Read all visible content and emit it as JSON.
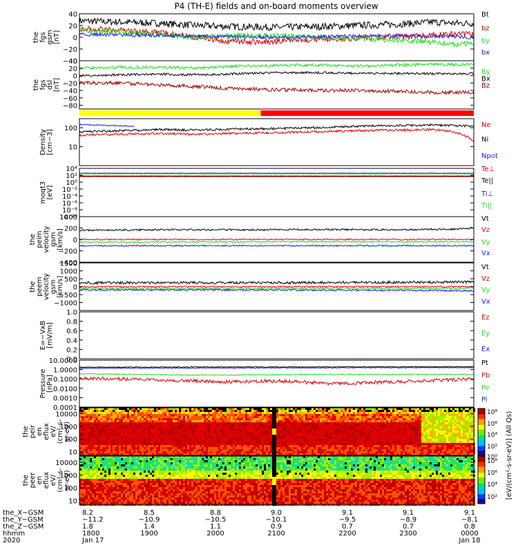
{
  "title": "P4 (TH-E) fields and on-board moments overview",
  "colors": {
    "black": "#000000",
    "red": "#e00000",
    "green": "#20e020",
    "blue": "#1a1ae6",
    "darkred": "#a00000",
    "yellow": "#ffff00",
    "barred": "#ff0000",
    "bg": "#ffffff"
  },
  "chart_data": [
    {
      "id": "fgs-gsm",
      "type": "line",
      "ylabel": [
        "the",
        "fgs",
        "gsm",
        "[nT]"
      ],
      "ylim": [
        -40,
        40
      ],
      "yticks": [
        "40",
        "20",
        "0",
        "−20",
        "−40"
      ],
      "legend": [
        {
          "label": "Bt",
          "color": "black"
        },
        {
          "label": "bz",
          "color": "red"
        },
        {
          "label": "by",
          "color": "green"
        },
        {
          "label": "bx",
          "color": "blue"
        }
      ],
      "series": [
        {
          "name": "Bt",
          "color": "black",
          "x": [
            0,
            10,
            20,
            30,
            40,
            50,
            60,
            70,
            80,
            90,
            95,
            100
          ],
          "values": [
            28,
            26,
            24,
            20,
            18,
            17,
            18,
            20,
            22,
            26,
            24,
            24
          ],
          "noise": 6
        },
        {
          "name": "bz",
          "color": "red",
          "x": [
            0,
            10,
            20,
            30,
            37,
            45,
            55,
            65,
            75,
            85,
            95,
            100
          ],
          "values": [
            15,
            12,
            8,
            0,
            -7,
            -8,
            -5,
            -3,
            0,
            2,
            5,
            5
          ],
          "noise": 5
        },
        {
          "name": "by",
          "color": "green",
          "x": [
            0,
            10,
            20,
            30,
            40,
            50,
            60,
            70,
            80,
            90,
            95,
            100
          ],
          "values": [
            12,
            9,
            5,
            0,
            2,
            2,
            0,
            -2,
            -4,
            -8,
            -12,
            -10
          ],
          "noise": 5
        },
        {
          "name": "bx",
          "color": "blue",
          "x": [
            0,
            10,
            20,
            30,
            40,
            50,
            60,
            70,
            80,
            90,
            95,
            100
          ],
          "values": [
            5,
            4,
            3,
            2,
            1,
            0,
            1,
            2,
            3,
            2,
            1,
            0
          ],
          "noise": 3
        }
      ]
    },
    {
      "id": "fgs-dsl",
      "type": "line",
      "ylabel": [
        "the",
        "fgs",
        "dsl",
        "[nT]"
      ],
      "ylim": [
        -90,
        40
      ],
      "yticks": [
        "40",
        "20",
        "0",
        "−20",
        "−40",
        "−60",
        "−80"
      ],
      "legend": [
        {
          "label": "By",
          "color": "green"
        },
        {
          "label": "Bx",
          "color": "black"
        },
        {
          "label": "Bz",
          "color": "darkred"
        }
      ],
      "series": [
        {
          "name": "By",
          "color": "green",
          "x": [
            0,
            10,
            20,
            30,
            40,
            50,
            60,
            70,
            80,
            90,
            100
          ],
          "values": [
            20,
            22,
            22,
            20,
            25,
            28,
            28,
            26,
            28,
            30,
            30
          ],
          "noise": 4
        },
        {
          "name": "Bx",
          "color": "black",
          "x": [
            0,
            10,
            20,
            30,
            40,
            50,
            60,
            70,
            80,
            90,
            100
          ],
          "values": [
            0,
            2,
            4,
            2,
            5,
            8,
            8,
            6,
            6,
            5,
            5
          ],
          "noise": 3
        },
        {
          "name": "Bz",
          "color": "darkred",
          "x": [
            0,
            10,
            20,
            30,
            40,
            50,
            60,
            70,
            80,
            90,
            100
          ],
          "values": [
            -20,
            -20,
            -25,
            -30,
            -35,
            -38,
            -40,
            -40,
            -42,
            -45,
            -45
          ],
          "noise": 5
        }
      ]
    },
    {
      "id": "mode-bar",
      "type": "bar",
      "segments": [
        {
          "from": 0,
          "to": 46,
          "color": "yellow"
        },
        {
          "from": 46,
          "to": 100,
          "color": "barred"
        }
      ]
    },
    {
      "id": "density",
      "type": "line",
      "yscale": "log",
      "ylabel": [
        "Density",
        "[cm−3]"
      ],
      "ylim": [
        1,
        300
      ],
      "yticks": [
        {
          "v": 100,
          "label": "100"
        },
        {
          "v": 10,
          "label": "10"
        }
      ],
      "legend": [
        {
          "label": "Ne",
          "color": "red"
        },
        {
          "label": "Ni",
          "color": "black"
        },
        {
          "label": "Npot",
          "color": "blue"
        }
      ],
      "series": [
        {
          "name": "Ni",
          "color": "black",
          "x": [
            0,
            10,
            20,
            30,
            40,
            50,
            60,
            70,
            80,
            90,
            95,
            100
          ],
          "values": [
            60,
            70,
            80,
            75,
            85,
            90,
            100,
            120,
            130,
            140,
            130,
            120
          ],
          "noise": 0.06
        },
        {
          "name": "Ne",
          "color": "red",
          "x": [
            0,
            10,
            20,
            30,
            40,
            50,
            60,
            70,
            80,
            90,
            95,
            100
          ],
          "values": [
            40,
            45,
            50,
            45,
            50,
            55,
            60,
            70,
            75,
            80,
            60,
            20
          ],
          "noise": 0.06
        },
        {
          "name": "Npot",
          "color": "blue",
          "x": [
            0,
            8,
            14
          ],
          "values": [
            150,
            130,
            120
          ],
          "noise": 0.03
        }
      ]
    },
    {
      "id": "moms-temp",
      "type": "line",
      "yscale": "log",
      "ylabel": [
        "moqt3",
        "[eV]"
      ],
      "ylim": [
        1e-10,
        10000.0
      ],
      "yticks": [
        {
          "v": 10000.0,
          "label": "10⁴"
        },
        {
          "v": 100,
          "label": "10²"
        },
        {
          "v": 1,
          "label": "10⁰"
        },
        {
          "v": 0.01,
          "label": "10⁻²"
        },
        {
          "v": 0.0001,
          "label": "10⁻⁴"
        },
        {
          "v": 1e-06,
          "label": "10⁻⁶"
        },
        {
          "v": 1e-08,
          "label": "10⁻⁸"
        },
        {
          "v": 1e-10,
          "label": "10⁻¹⁰"
        }
      ],
      "legend": [
        {
          "label": "Te⊥",
          "color": "red"
        },
        {
          "label": "Te||",
          "color": "black"
        },
        {
          "label": "Ti⊥",
          "color": "blue"
        },
        {
          "label": "Ti||",
          "color": "green"
        }
      ],
      "series": [
        {
          "name": "Ti⊥",
          "color": "blue",
          "x": [
            0,
            50,
            100
          ],
          "values": [
            400,
            400,
            400
          ],
          "noise": 0.04
        },
        {
          "name": "Ti||",
          "color": "green",
          "x": [
            0,
            50,
            100
          ],
          "values": [
            250,
            250,
            250
          ],
          "noise": 0.04
        },
        {
          "name": "Te||",
          "color": "black",
          "x": [
            0,
            50,
            100
          ],
          "values": [
            60,
            60,
            60
          ],
          "noise": 0.03
        },
        {
          "name": "Te⊥",
          "color": "red",
          "x": [
            0,
            50,
            100
          ],
          "values": [
            40,
            40,
            40
          ],
          "noise": 0.03
        }
      ]
    },
    {
      "id": "peim-velocity",
      "type": "line",
      "ylabel": [
        "the",
        "peim",
        "velocity",
        "gsm",
        "[km/s]"
      ],
      "ylim": [
        -400,
        400
      ],
      "yticks": [
        "400",
        "200",
        "0",
        "−200",
        "−400"
      ],
      "legend": [
        {
          "label": "Vt",
          "color": "black"
        },
        {
          "label": "Vz",
          "color": "red"
        },
        {
          "label": "Vy",
          "color": "green"
        },
        {
          "label": "Vx",
          "color": "blue"
        }
      ],
      "series": [
        {
          "name": "Vt",
          "color": "black",
          "x": [
            0,
            20,
            40,
            60,
            80,
            95,
            100
          ],
          "values": [
            160,
            170,
            170,
            175,
            170,
            180,
            200
          ],
          "noise": 15
        },
        {
          "name": "Vz",
          "color": "red",
          "x": [
            0,
            50,
            100
          ],
          "values": [
            0,
            0,
            0
          ],
          "noise": 12
        },
        {
          "name": "Vy",
          "color": "green",
          "x": [
            0,
            50,
            100
          ],
          "values": [
            -50,
            -40,
            -40
          ],
          "noise": 12
        },
        {
          "name": "Vx",
          "color": "blue",
          "x": [
            0,
            50,
            100
          ],
          "values": [
            -110,
            -110,
            -110
          ],
          "noise": 12
        }
      ]
    },
    {
      "id": "peem-velocity",
      "type": "line",
      "ylabel": [
        "the",
        "peem",
        "velocity",
        "gsm",
        "[km/s]"
      ],
      "ylim": [
        -1500,
        1500
      ],
      "yticks": [
        "1500",
        "1000",
        "500",
        "0",
        "−500",
        "−1000"
      ],
      "legend": [
        {
          "label": "Vt",
          "color": "black"
        },
        {
          "label": "Vz",
          "color": "red"
        },
        {
          "label": "Vy",
          "color": "green"
        },
        {
          "label": "Vx",
          "color": "blue"
        }
      ],
      "series": [
        {
          "name": "Vt",
          "color": "black",
          "x": [
            0,
            50,
            100
          ],
          "values": [
            250,
            250,
            300
          ],
          "noise": 80
        },
        {
          "name": "Vz",
          "color": "red",
          "x": [
            0,
            50,
            100
          ],
          "values": [
            0,
            0,
            0
          ],
          "noise": 40
        },
        {
          "name": "Vy",
          "color": "green",
          "x": [
            0,
            50,
            100
          ],
          "values": [
            -100,
            -100,
            -100
          ],
          "noise": 50
        },
        {
          "name": "Vx",
          "color": "blue",
          "x": [
            0,
            50,
            100
          ],
          "values": [
            -200,
            -200,
            -250
          ],
          "noise": 60
        }
      ]
    },
    {
      "id": "e-field",
      "type": "line",
      "ylabel": [
        "E=−VxB",
        "[mV/m]"
      ],
      "ylim": [
        0,
        1
      ],
      "yticks": [
        "1.0",
        "0.8",
        "0.6",
        "0.4",
        "0.2",
        "0.0"
      ],
      "legend": [
        {
          "label": "Ez",
          "color": "red"
        },
        {
          "label": "Ey",
          "color": "green"
        },
        {
          "label": "Ex",
          "color": "blue"
        }
      ],
      "series": []
    },
    {
      "id": "pressure",
      "type": "line",
      "yscale": "log",
      "ylabel": [
        "Pressure",
        "[nPa]"
      ],
      "ylim": [
        0.0001,
        10
      ],
      "yticks": [
        {
          "v": 10,
          "label": "10.0000"
        },
        {
          "v": 1,
          "label": "1.0000"
        },
        {
          "v": 0.1,
          "label": "0.1000"
        },
        {
          "v": 0.01,
          "label": "0.0100"
        },
        {
          "v": 0.001,
          "label": "0.0010"
        },
        {
          "v": 0.0001,
          "label": "0.0001"
        }
      ],
      "legend": [
        {
          "label": "Pt",
          "color": "black"
        },
        {
          "label": "Pb",
          "color": "red"
        },
        {
          "label": "Pe",
          "color": "green"
        },
        {
          "label": "Pi",
          "color": "blue"
        }
      ],
      "series": [
        {
          "name": "Pt",
          "color": "black",
          "x": [
            0,
            50,
            100
          ],
          "values": [
            1.8,
            1.9,
            2.0
          ],
          "noise": 0.04
        },
        {
          "name": "Pi",
          "color": "blue",
          "x": [
            0,
            50,
            100
          ],
          "values": [
            1.4,
            1.5,
            1.6
          ],
          "noise": 0.04
        },
        {
          "name": "Pe",
          "color": "green",
          "x": [
            0,
            30,
            60,
            100
          ],
          "values": [
            0.35,
            0.25,
            0.3,
            0.3
          ],
          "noise": 0.06
        },
        {
          "name": "Pb",
          "color": "red",
          "x": [
            0,
            20,
            35,
            40,
            50,
            65,
            80,
            95,
            100
          ],
          "values": [
            0.12,
            0.08,
            0.05,
            0.05,
            0.06,
            0.03,
            0.05,
            0.08,
            0.1
          ],
          "noise": 0.18
        }
      ]
    },
    {
      "id": "peir-spectrogram",
      "type": "heatmap",
      "ylabel": [
        "the",
        "peir",
        "en",
        "eflux",
        "eV/",
        "(cm²-s-",
        "sr-eV)"
      ],
      "yscale": "log",
      "ylim": [
        5,
        30000
      ],
      "yticks": [
        {
          "v": 10000,
          "label": "10000"
        },
        {
          "v": 1000,
          "label": "1000"
        },
        {
          "v": 100,
          "label": "100"
        },
        {
          "v": 10,
          "label": "10"
        }
      ]
    },
    {
      "id": "peer-spectrogram",
      "type": "heatmap",
      "ylabel": [
        "the",
        "peer",
        "en",
        "eflux",
        "eV/",
        "(cm²-s-",
        "sr-eV)"
      ],
      "yscale": "log",
      "ylim": [
        5,
        30000
      ],
      "yticks": [
        {
          "v": 10000,
          "label": "10000"
        },
        {
          "v": 1000,
          "label": "1000"
        },
        {
          "v": 100,
          "label": "100"
        },
        {
          "v": 10,
          "label": "10"
        }
      ]
    }
  ],
  "colorbar_label": "[eV/(cm²-s-sr-eV)] (All Qs)",
  "colorbar_ticks": [
    "10⁸",
    "10⁶",
    "10⁴",
    "10²",
    "10⁰",
    "10⁸",
    "10⁶",
    "10⁴",
    "10²"
  ],
  "axis": {
    "rows": [
      {
        "label": "the_X−GSM",
        "values": [
          "8.2",
          "8.5",
          "8.8",
          "9.0",
          "9.1",
          "9.1",
          "9.1"
        ]
      },
      {
        "label": "the_Y−GSM",
        "values": [
          "−11.2",
          "−10.9",
          "−10.5",
          "−10.1",
          "−9.5",
          "−8.9",
          "−8.1"
        ]
      },
      {
        "label": "the_Z−GSM",
        "values": [
          "1.8",
          "1.4",
          "1.1",
          "0.9",
          "0.7",
          "0.7",
          "0.8"
        ]
      },
      {
        "label": "hhmm",
        "values": [
          "1800",
          "1900",
          "2000",
          "2100",
          "2200",
          "2300",
          "0000"
        ]
      },
      {
        "label": "2020",
        "values": [
          "Jan 17",
          "",
          "",
          "",
          "",
          "",
          "Jan 18"
        ]
      }
    ]
  }
}
